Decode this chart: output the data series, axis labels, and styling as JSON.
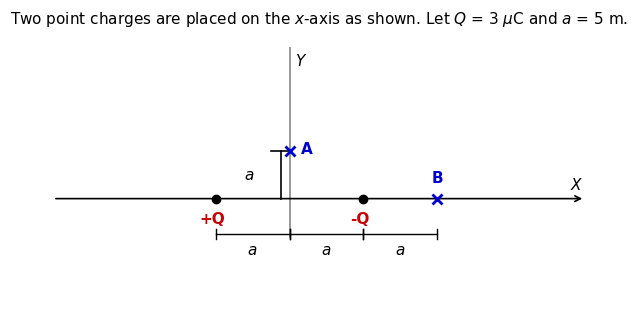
{
  "title": "Two point charges are placed on the x-axis as shown. Let $Q$ = 3 $\\mu$C and $a$ = 5 m.",
  "background_color": "#ffffff",
  "x_axis_range": [
    -3.2,
    4.0
  ],
  "y_axis_range": [
    -2.2,
    3.2
  ],
  "charge_plus_x": -1.0,
  "charge_plus_y": 0.0,
  "charge_minus_x": 1.0,
  "charge_minus_y": 0.0,
  "point_A_x": 0.0,
  "point_A_y": 1.0,
  "point_B_x": 2.0,
  "point_B_y": 0.0,
  "plus_color": "#cc0000",
  "minus_color": "#cc0000",
  "point_A_color": "#0000cc",
  "point_B_color": "#0000cc",
  "x_label_color": "#000000",
  "y_label_color": "#000000",
  "axis_gray": "#888888",
  "label_fontsize": 10,
  "title_fontsize": 11
}
